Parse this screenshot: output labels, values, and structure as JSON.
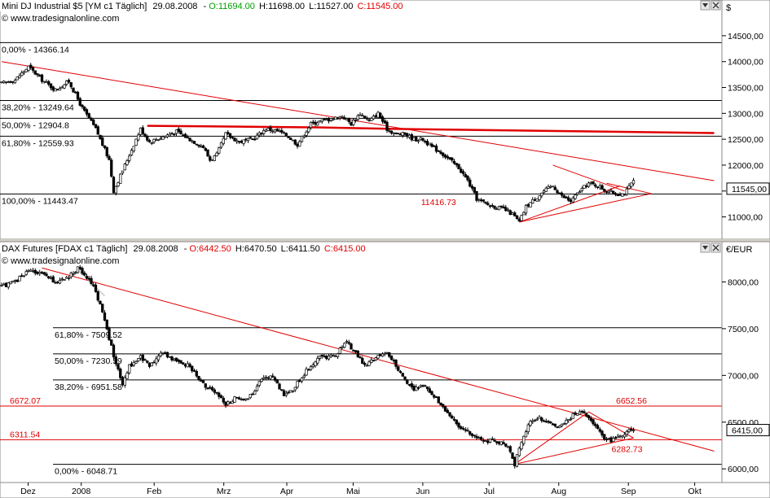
{
  "chart_data": [
    {
      "type": "candlestick",
      "panel": "top",
      "header": {
        "instrument": "Mini DJ Industrial $5 [YM c1  Täglich]",
        "date": "29.08.2008",
        "open": "O:11694.00",
        "high": "H:11698.00",
        "low": "L:11527.00",
        "close": "C:11545.00"
      },
      "watermark": "© www.tradesignalonline.com",
      "currency": "$",
      "ylim": [
        10600,
        14750
      ],
      "y_ticks": [
        11000,
        11500,
        12000,
        12500,
        13000,
        13500,
        14000,
        14500
      ],
      "y_tick_labels": [
        "11000,00",
        "11500,00",
        "12000,00",
        "12500,00",
        "13000,00",
        "13500,00",
        "14000,00",
        "14500,00"
      ],
      "last_price_label": "11545,00",
      "last_price": 11545,
      "fib_levels": [
        {
          "label": "0,00% - 14366.14",
          "value": 14366.14
        },
        {
          "label": "38,20% - 13249.64",
          "value": 13249.64
        },
        {
          "label": "50,00% - 12904.8",
          "value": 12904.8
        },
        {
          "label": "61,80% - 12559.93",
          "value": 12559.93
        },
        {
          "label": "100,00% - 11443.47",
          "value": 11443.47
        }
      ],
      "annotation": {
        "label": "11416.73",
        "value": 11416.73,
        "day": 185
      },
      "keypoints": [
        [
          0,
          13580
        ],
        [
          6,
          13650
        ],
        [
          12,
          13900
        ],
        [
          18,
          13650
        ],
        [
          24,
          13450
        ],
        [
          30,
          13620
        ],
        [
          36,
          13100
        ],
        [
          42,
          12700
        ],
        [
          48,
          12100
        ],
        [
          50,
          11500
        ],
        [
          54,
          11900
        ],
        [
          58,
          12300
        ],
        [
          62,
          12700
        ],
        [
          66,
          12450
        ],
        [
          72,
          12550
        ],
        [
          78,
          12650
        ],
        [
          84,
          12500
        ],
        [
          90,
          12350
        ],
        [
          93,
          12100
        ],
        [
          96,
          12200
        ],
        [
          100,
          12600
        ],
        [
          106,
          12450
        ],
        [
          112,
          12500
        ],
        [
          118,
          12700
        ],
        [
          124,
          12650
        ],
        [
          128,
          12550
        ],
        [
          132,
          12400
        ],
        [
          138,
          12800
        ],
        [
          142,
          12850
        ],
        [
          148,
          12900
        ],
        [
          152,
          12950
        ],
        [
          156,
          12800
        ],
        [
          160,
          13000
        ],
        [
          164,
          12850
        ],
        [
          168,
          13000
        ],
        [
          172,
          12700
        ],
        [
          176,
          12600
        ],
        [
          180,
          12600
        ],
        [
          184,
          12500
        ],
        [
          188,
          12500
        ],
        [
          192,
          12350
        ],
        [
          196,
          12250
        ],
        [
          200,
          12100
        ],
        [
          204,
          11950
        ],
        [
          208,
          11700
        ],
        [
          212,
          11350
        ],
        [
          216,
          11250
        ],
        [
          220,
          11200
        ],
        [
          224,
          11150
        ],
        [
          228,
          11050
        ],
        [
          231,
          10900
        ],
        [
          234,
          11200
        ],
        [
          238,
          11350
        ],
        [
          242,
          11500
        ],
        [
          246,
          11600
        ],
        [
          250,
          11400
        ],
        [
          254,
          11300
        ],
        [
          258,
          11500
        ],
        [
          262,
          11650
        ],
        [
          266,
          11600
        ],
        [
          270,
          11500
        ],
        [
          274,
          11450
        ],
        [
          278,
          11450
        ],
        [
          282,
          11700
        ]
      ],
      "resistance_lines": [
        [
          0,
          14000,
          318,
          11700
        ]
      ],
      "horizontal_band": [
        [
          65,
          12760
        ],
        [
          140,
          12730
        ],
        [
          175,
          12700
        ],
        [
          318,
          12620
        ]
      ],
      "pattern_lines": [
        [
          231,
          10900,
          276,
          11600
        ],
        [
          246,
          12000,
          278,
          11500
        ],
        [
          270,
          11650,
          290,
          11450
        ],
        [
          231,
          10900,
          290,
          11450
        ]
      ]
    },
    {
      "type": "candlestick",
      "panel": "bottom",
      "header": {
        "instrument": "DAX Futures [FDAX c1  Täglich]",
        "date": "29.08.2008",
        "open": "O:6442.50",
        "high": "H:6470.50",
        "low": "L:6411.50",
        "close": "C:6415.00"
      },
      "watermark": "© www.tradesignalonline.com",
      "currency": "€/EUR",
      "ylim": [
        5880,
        8300
      ],
      "y_ticks": [
        6000,
        6500,
        7000,
        7500,
        8000
      ],
      "y_tick_labels": [
        "6000,00",
        "6500,00",
        "7000,00",
        "7500,00",
        "8000,00"
      ],
      "last_price_label": "6415,00",
      "last_price": 6415,
      "fib_levels": [
        {
          "label": "0,00% - 6048.71",
          "value": 6048.71
        },
        {
          "label": "38,20% - 6951.58",
          "value": 6951.58
        },
        {
          "label": "50,00% - 7230.59",
          "value": 7230.59
        },
        {
          "label": "61,80% - 7509.52",
          "value": 7509.52
        }
      ],
      "horizontal_lines": [
        {
          "label": "6672.07",
          "value": 6672.07,
          "right_label": "6652.56"
        },
        {
          "label": "6311.54",
          "value": 6311.54
        }
      ],
      "annotation": {
        "label": "6282.73",
        "value": 6282.73,
        "day": 270
      },
      "keypoints": [
        [
          0,
          7950
        ],
        [
          6,
          8000
        ],
        [
          12,
          8130
        ],
        [
          18,
          8080
        ],
        [
          24,
          8000
        ],
        [
          30,
          8050
        ],
        [
          34,
          8150
        ],
        [
          38,
          8050
        ],
        [
          42,
          7900
        ],
        [
          46,
          7600
        ],
        [
          50,
          7200
        ],
        [
          54,
          6900
        ],
        [
          57,
          7100
        ],
        [
          62,
          7200
        ],
        [
          66,
          7100
        ],
        [
          72,
          7250
        ],
        [
          78,
          7150
        ],
        [
          84,
          7100
        ],
        [
          90,
          6900
        ],
        [
          96,
          6800
        ],
        [
          100,
          6700
        ],
        [
          104,
          6750
        ],
        [
          110,
          6750
        ],
        [
          116,
          6950
        ],
        [
          120,
          7000
        ],
        [
          126,
          6800
        ],
        [
          130,
          6850
        ],
        [
          136,
          7050
        ],
        [
          142,
          7200
        ],
        [
          148,
          7200
        ],
        [
          154,
          7350
        ],
        [
          158,
          7250
        ],
        [
          162,
          7100
        ],
        [
          168,
          7200
        ],
        [
          172,
          7250
        ],
        [
          176,
          7100
        ],
        [
          180,
          6950
        ],
        [
          184,
          6850
        ],
        [
          188,
          6900
        ],
        [
          192,
          6800
        ],
        [
          196,
          6700
        ],
        [
          200,
          6550
        ],
        [
          204,
          6450
        ],
        [
          208,
          6400
        ],
        [
          212,
          6350
        ],
        [
          216,
          6300
        ],
        [
          220,
          6300
        ],
        [
          226,
          6250
        ],
        [
          229,
          6050
        ],
        [
          232,
          6300
        ],
        [
          236,
          6500
        ],
        [
          240,
          6550
        ],
        [
          244,
          6500
        ],
        [
          248,
          6450
        ],
        [
          252,
          6500
        ],
        [
          256,
          6600
        ],
        [
          260,
          6600
        ],
        [
          264,
          6500
        ],
        [
          268,
          6350
        ],
        [
          272,
          6300
        ],
        [
          276,
          6350
        ],
        [
          282,
          6420
        ]
      ],
      "resistance_lines": [
        [
          18,
          8150,
          318,
          6190
        ]
      ],
      "pattern_lines": [
        [
          229,
          6050,
          262,
          6610
        ],
        [
          262,
          6610,
          282,
          6330
        ],
        [
          229,
          6050,
          282,
          6330
        ]
      ],
      "hint_line": [
        [
          34,
          8130
        ],
        [
          46,
          7850
        ]
      ]
    }
  ],
  "x_axis": {
    "labels": [
      {
        "text": "Dez",
        "day": 8
      },
      {
        "text": "2008",
        "day": 24
      },
      {
        "text": "Feb",
        "day": 46
      },
      {
        "text": "Mrz",
        "day": 67
      },
      {
        "text": "Apr",
        "day": 86
      },
      {
        "text": "Mai",
        "day": 106
      },
      {
        "text": "Jun",
        "day": 127
      },
      {
        "text": "Jul",
        "day": 147
      },
      {
        "text": "Aug",
        "day": 168
      },
      {
        "text": "Sep",
        "day": 189
      },
      {
        "text": "Okt",
        "day": 209
      }
    ],
    "days_per_bar": 0.6757
  },
  "colors": {
    "background": "#ffffff",
    "axis_bg": "#ffffff",
    "grid": "#000000",
    "annotation": "#e00000",
    "candle_up": "#ffffff",
    "candle_down": "#000000",
    "header_open": "#00a000",
    "header_close": "#e00000"
  },
  "icons": [
    "close-icon",
    "menu-icon"
  ]
}
